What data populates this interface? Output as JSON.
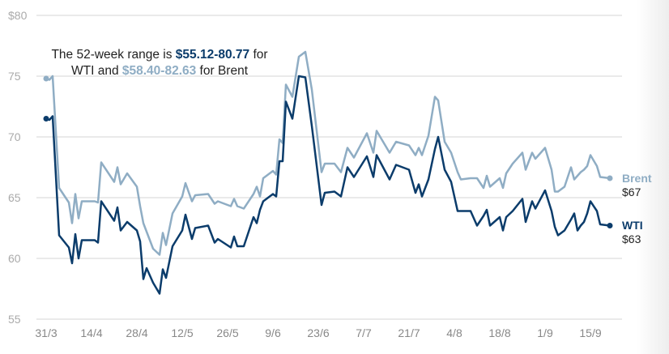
{
  "chart_data": {
    "type": "line",
    "title": "",
    "xlabel": "",
    "ylabel": "",
    "ylim": [
      55,
      80
    ],
    "yticks": [
      55,
      60,
      65,
      70,
      75,
      80
    ],
    "ytick_labels": [
      "55",
      "60",
      "65",
      "70",
      "75",
      "$80"
    ],
    "xtick_labels": [
      "31/3",
      "14/4",
      "28/4",
      "12/5",
      "26/5",
      "9/6",
      "23/6",
      "7/7",
      "21/7",
      "4/8",
      "18/8",
      "1/9",
      "15/9"
    ],
    "grid": true,
    "x": [
      "31/3",
      "1/4",
      "2/4",
      "4/4",
      "7/4",
      "8/4",
      "9/4",
      "10/4",
      "11/4",
      "15/4",
      "16/4",
      "17/4",
      "21/4",
      "22/4",
      "23/4",
      "25/4",
      "28/4",
      "29/4",
      "30/4",
      "1/5",
      "3/5",
      "5/5",
      "6/5",
      "7/5",
      "9/5",
      "12/5",
      "13/5",
      "15/5",
      "16/5",
      "20/5",
      "22/5",
      "23/5",
      "27/5",
      "28/5",
      "29/5",
      "31/5",
      "3/6",
      "4/6",
      "5/6",
      "6/6",
      "9/6",
      "10/6",
      "11/6",
      "12/6",
      "13/6",
      "15/6",
      "17/6",
      "19/6",
      "21/6",
      "24/6",
      "25/6",
      "28/6",
      "30/6",
      "2/7",
      "4/7",
      "8/7",
      "10/7",
      "11/7",
      "15/7",
      "17/7",
      "21/7",
      "23/7",
      "24/7",
      "25/7",
      "27/7",
      "29/7",
      "30/7",
      "1/8",
      "3/8",
      "5/8",
      "6/8",
      "9/8",
      "11/8",
      "13/8",
      "14/8",
      "15/8",
      "18/8",
      "19/8",
      "20/8",
      "22/8",
      "25/8",
      "26/8",
      "28/8",
      "29/8",
      "1/9",
      "3/9",
      "4/9",
      "5/9",
      "7/9",
      "9/9",
      "10/9",
      "11/9",
      "12/9",
      "13/9",
      "14/9",
      "15/9",
      "17/9",
      "18/9",
      "21/9"
    ],
    "series": [
      {
        "name": "WTI",
        "color": "#0b3c6b",
        "end_label": "$63",
        "values": [
          71.5,
          71.4,
          71.7,
          61.9,
          60.9,
          59.6,
          62.0,
          60.0,
          61.5,
          61.5,
          61.3,
          64.7,
          63.1,
          64.2,
          62.3,
          63.0,
          62.3,
          61.4,
          58.3,
          59.2,
          58.0,
          57.1,
          59.1,
          58.4,
          61.0,
          62.3,
          63.6,
          61.6,
          62.5,
          62.7,
          61.3,
          61.6,
          60.9,
          61.8,
          61.0,
          61.0,
          63.4,
          62.9,
          64.0,
          64.7,
          65.3,
          65.1,
          68.0,
          68.0,
          72.9,
          71.5,
          75.0,
          74.9,
          70.9,
          64.4,
          65.4,
          65.5,
          65.1,
          67.5,
          66.7,
          68.4,
          66.7,
          68.5,
          66.5,
          67.7,
          67.3,
          65.4,
          66.1,
          65.1,
          66.5,
          69.0,
          70.0,
          67.3,
          66.3,
          63.9,
          63.9,
          63.9,
          62.7,
          63.5,
          64.0,
          62.7,
          63.4,
          62.3,
          63.4,
          63.9,
          64.9,
          63.0,
          64.7,
          64.1,
          65.6,
          63.9,
          62.6,
          61.9,
          62.3,
          63.2,
          63.7,
          62.3,
          62.7,
          63.0,
          63.7,
          64.7,
          63.9,
          62.8,
          62.7
        ]
      },
      {
        "name": "Brent",
        "color": "#8fadc4",
        "end_label": "$67",
        "values": [
          74.8,
          74.7,
          75.0,
          65.8,
          64.6,
          62.9,
          65.3,
          63.3,
          64.7,
          64.7,
          64.6,
          67.9,
          66.3,
          67.5,
          66.1,
          67.0,
          65.9,
          64.3,
          62.9,
          62.2,
          60.8,
          60.3,
          62.1,
          61.1,
          63.7,
          65.1,
          66.2,
          64.7,
          65.2,
          65.3,
          64.5,
          64.7,
          64.3,
          64.9,
          64.3,
          64.1,
          65.3,
          65.9,
          65.1,
          66.6,
          67.2,
          66.9,
          69.8,
          69.5,
          74.3,
          73.3,
          76.6,
          77.0,
          73.9,
          67.1,
          67.8,
          67.8,
          67.1,
          69.1,
          68.3,
          70.3,
          68.7,
          70.5,
          68.7,
          69.6,
          69.3,
          68.5,
          69.1,
          68.5,
          70.1,
          73.3,
          73.0,
          69.6,
          68.7,
          67.1,
          66.5,
          66.6,
          66.6,
          65.8,
          66.8,
          65.9,
          66.6,
          65.8,
          67.0,
          67.8,
          68.7,
          67.3,
          68.7,
          68.2,
          69.1,
          67.3,
          65.5,
          65.5,
          65.9,
          67.5,
          66.5,
          66.8,
          67.1,
          67.3,
          67.6,
          68.5,
          67.6,
          66.7,
          66.6
        ]
      }
    ],
    "annotation": {
      "prefix": "The 52-week range is ",
      "wti_range": "$55.12-80.77",
      "middle": " for WTI and ",
      "brent_range": "$58.40-82.63",
      "suffix": " for Brent"
    }
  }
}
